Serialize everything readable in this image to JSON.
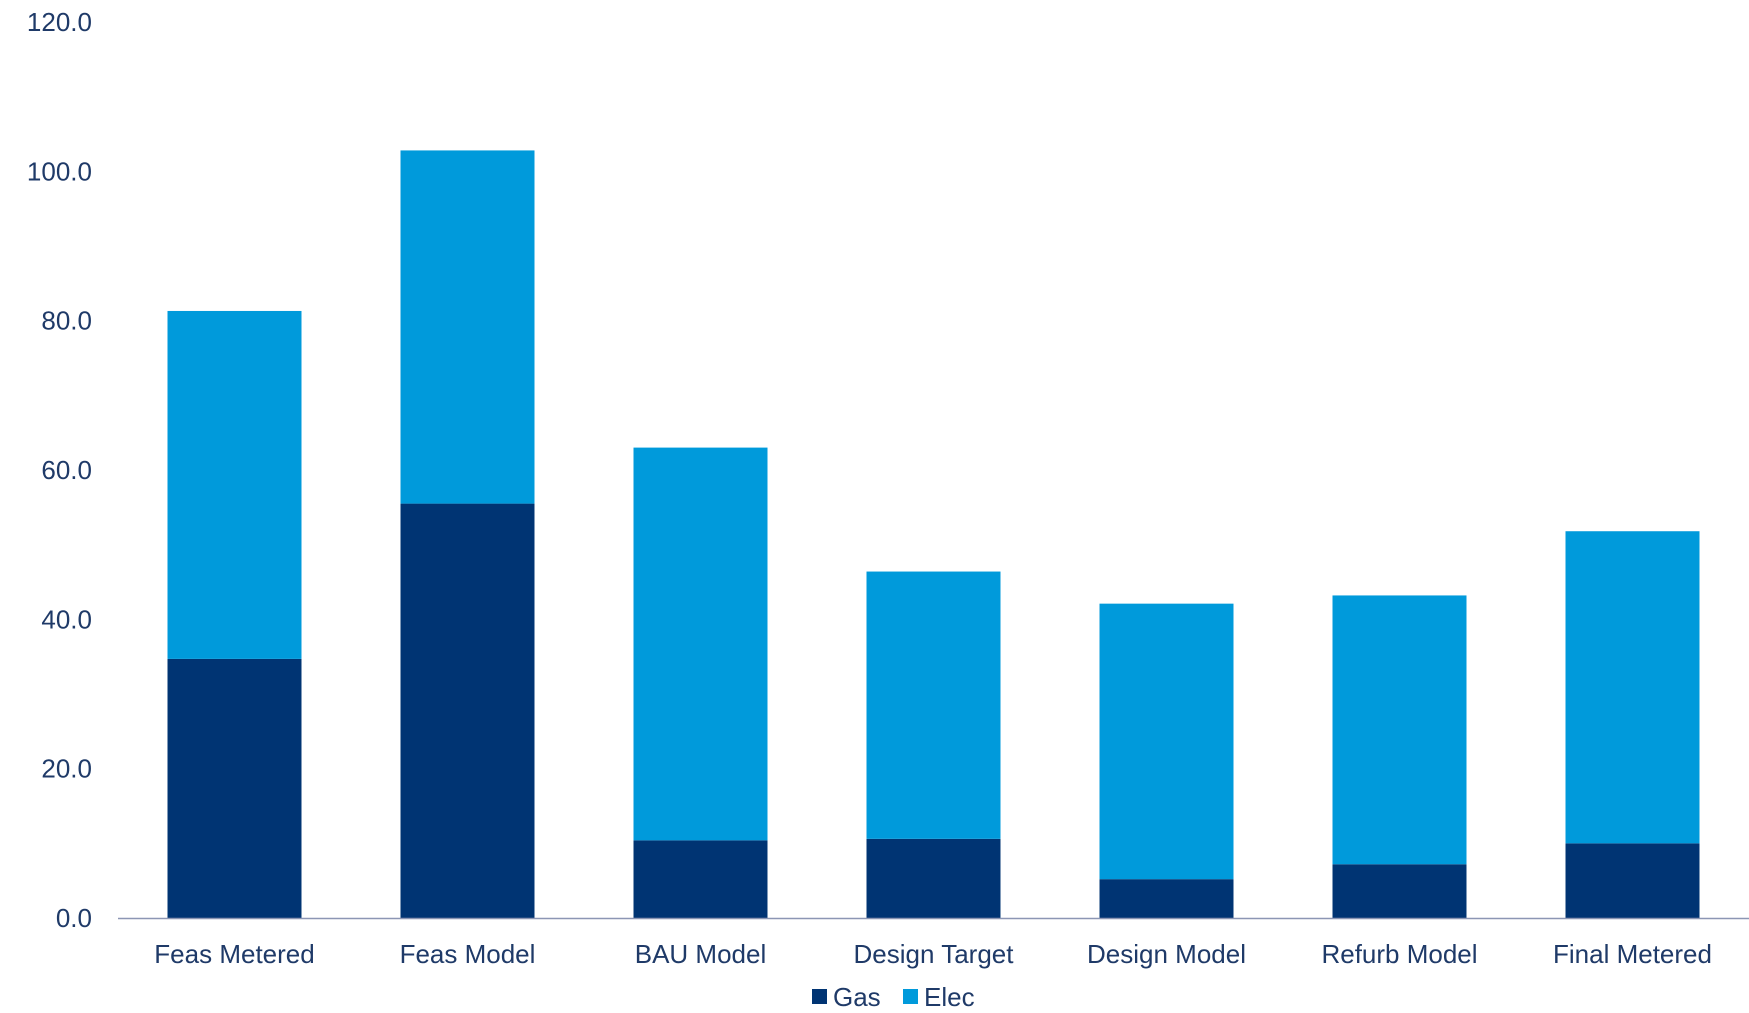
{
  "chart_data": {
    "type": "bar",
    "stacked": true,
    "categories": [
      "Feas Metered",
      "Feas Model",
      "BAU Model",
      "Design Target",
      "Design Model",
      "Refurb Model",
      "Final Metered"
    ],
    "series": [
      {
        "name": "Gas",
        "color": "#003473",
        "values": [
          34.7,
          55.5,
          10.4,
          10.6,
          5.2,
          7.2,
          10.0
        ]
      },
      {
        "name": "Elec",
        "color": "#009adb",
        "values": [
          46.6,
          47.3,
          52.6,
          35.8,
          36.9,
          36.0,
          41.8
        ]
      }
    ],
    "y_ticks": [
      "0.0",
      "20.0",
      "40.0",
      "60.0",
      "80.0",
      "100.0",
      "120.0"
    ],
    "ylim": [
      0,
      120
    ],
    "grid": false,
    "legend": "bottom-center",
    "axis_color": "#8c96b4"
  }
}
